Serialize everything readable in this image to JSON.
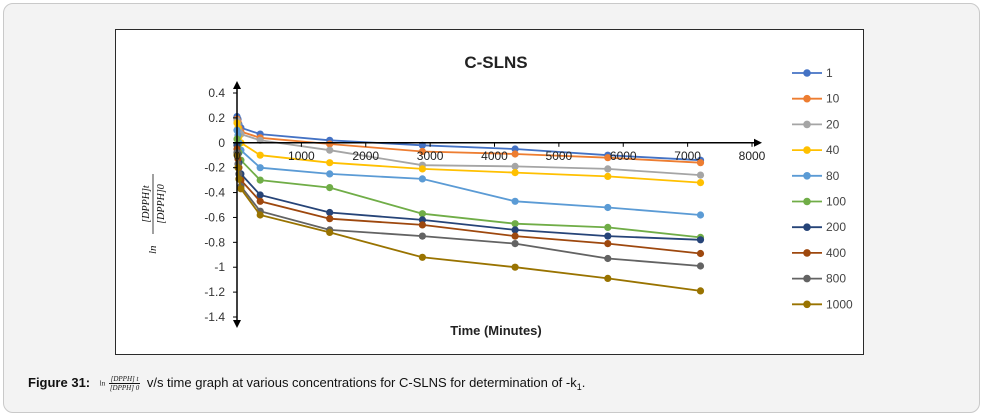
{
  "chart_data": {
    "type": "line",
    "title": "C-SLNS",
    "xlabel": "Time (Minutes)",
    "ylabel": {
      "numerator": "[DPPH]t",
      "denominator": "[DPPH]0",
      "prefix": "ln"
    },
    "xlim": [
      0,
      8000
    ],
    "ylim": [
      -1.4,
      0.4
    ],
    "x_ticks": [
      0,
      1000,
      2000,
      3000,
      4000,
      5000,
      6000,
      7000,
      8000
    ],
    "x_tick_labels": [
      "0",
      "1000",
      "2000",
      "3000",
      "4000",
      "5000",
      "6000",
      "7000",
      "8000"
    ],
    "y_ticks": [
      0.4,
      0.2,
      0,
      -0.2,
      -0.4,
      -0.6,
      -0.8,
      -1,
      -1.2,
      -1.4
    ],
    "y_tick_labels": [
      "0.4",
      "0.2",
      "0",
      "-0.2",
      "-0.4",
      "-0.6",
      "-0.8",
      "-1",
      "-1.2",
      "-1.4"
    ],
    "x": [
      0,
      15,
      30,
      60,
      360,
      1440,
      2880,
      4320,
      5760,
      7200
    ],
    "legend_position": "right",
    "series": [
      {
        "name": "1",
        "color": "#4472C4",
        "values": [
          0.21,
          0.19,
          0.15,
          0.12,
          0.07,
          0.02,
          -0.02,
          -0.05,
          -0.1,
          -0.14
        ]
      },
      {
        "name": "10",
        "color": "#ED7D31",
        "values": [
          0.19,
          0.17,
          0.12,
          0.09,
          0.04,
          -0.01,
          -0.07,
          -0.09,
          -0.12,
          -0.16
        ]
      },
      {
        "name": "20",
        "color": "#A5A5A5",
        "values": [
          0.18,
          0.15,
          0.1,
          0.07,
          0.02,
          -0.06,
          -0.18,
          -0.19,
          -0.21,
          -0.26
        ]
      },
      {
        "name": "40",
        "color": "#FFC000",
        "values": [
          0.16,
          0.12,
          0.05,
          0.0,
          -0.1,
          -0.16,
          -0.21,
          -0.24,
          -0.27,
          -0.32
        ]
      },
      {
        "name": "80",
        "color": "#5B9BD5",
        "values": [
          0.1,
          0.06,
          0.0,
          -0.06,
          -0.2,
          -0.25,
          -0.29,
          -0.47,
          -0.52,
          -0.58
        ]
      },
      {
        "name": "100",
        "color": "#70AD47",
        "values": [
          0.03,
          -0.02,
          -0.08,
          -0.14,
          -0.3,
          -0.36,
          -0.57,
          -0.65,
          -0.68,
          -0.76
        ]
      },
      {
        "name": "200",
        "color": "#264478",
        "values": [
          -0.02,
          -0.09,
          -0.16,
          -0.25,
          -0.42,
          -0.56,
          -0.62,
          -0.7,
          -0.75,
          -0.78
        ]
      },
      {
        "name": "400",
        "color": "#9E480E",
        "values": [
          -0.05,
          -0.13,
          -0.2,
          -0.3,
          -0.47,
          -0.61,
          -0.66,
          -0.75,
          -0.81,
          -0.89
        ]
      },
      {
        "name": "800",
        "color": "#636363",
        "values": [
          -0.08,
          -0.17,
          -0.25,
          -0.35,
          -0.55,
          -0.7,
          -0.75,
          -0.81,
          -0.93,
          -0.99
        ]
      },
      {
        "name": "1000",
        "color": "#997300",
        "values": [
          -0.1,
          -0.2,
          -0.29,
          -0.37,
          -0.58,
          -0.72,
          -0.92,
          -1.0,
          -1.09,
          -1.19
        ]
      }
    ]
  },
  "caption": {
    "label": "Figure 31:",
    "ln": "ln",
    "numerator": "[DPPH] t",
    "denominator": "[DPPH] 0",
    "text": "v/s time graph at various concentrations for C-SLNS for determination of -k",
    "subscript": "1",
    "suffix": "."
  }
}
